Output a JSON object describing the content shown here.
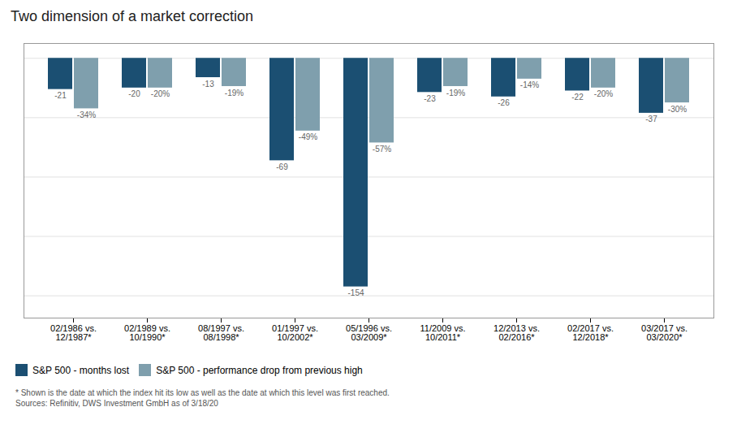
{
  "chart_data": {
    "type": "bar",
    "title": "Two dimension of a market correction",
    "categories": [
      "02/1986 vs.\n12/1987*",
      "02/1989 vs.\n10/1990*",
      "08/1997 vs.\n08/1998*",
      "01/1997 vs.\n10/2002*",
      "05/1996 vs.\n03/2009*",
      "11/2009 vs.\n10/2011*",
      "12/2013 vs.\n02/2016*",
      "02/2017 vs.\n12/2018*",
      "03/2017 vs.\n03/2020*"
    ],
    "series": [
      {
        "name": "S&P 500 - months lost",
        "color": "#1b4f72",
        "values": [
          -21,
          -20,
          -13,
          -69,
          -154,
          -23,
          -26,
          -22,
          -37
        ]
      },
      {
        "name": "S&P 500 - performance drop from previous high",
        "color": "#7f9fad",
        "values": [
          -34,
          -20,
          -19,
          -49,
          -57,
          -19,
          -14,
          -20,
          -30
        ],
        "value_labels": [
          "-34%",
          "-20%",
          "-19%",
          "-49%",
          "-57%",
          "-19%",
          "-14%",
          "-20%",
          "-30%"
        ]
      }
    ],
    "ylim": [
      -175,
      10
    ],
    "yticks": [
      0,
      -40,
      -80,
      -120,
      -160
    ],
    "grid": true,
    "tick_labels": "x",
    "data_labels": true,
    "legend": "lower left",
    "annotations": [
      "* Shown is the date at which the index hit its low as well as the date at which this level was first reached.",
      "Sources: Refinitiv, DWS Investment GmbH as of 3/18/20"
    ]
  }
}
